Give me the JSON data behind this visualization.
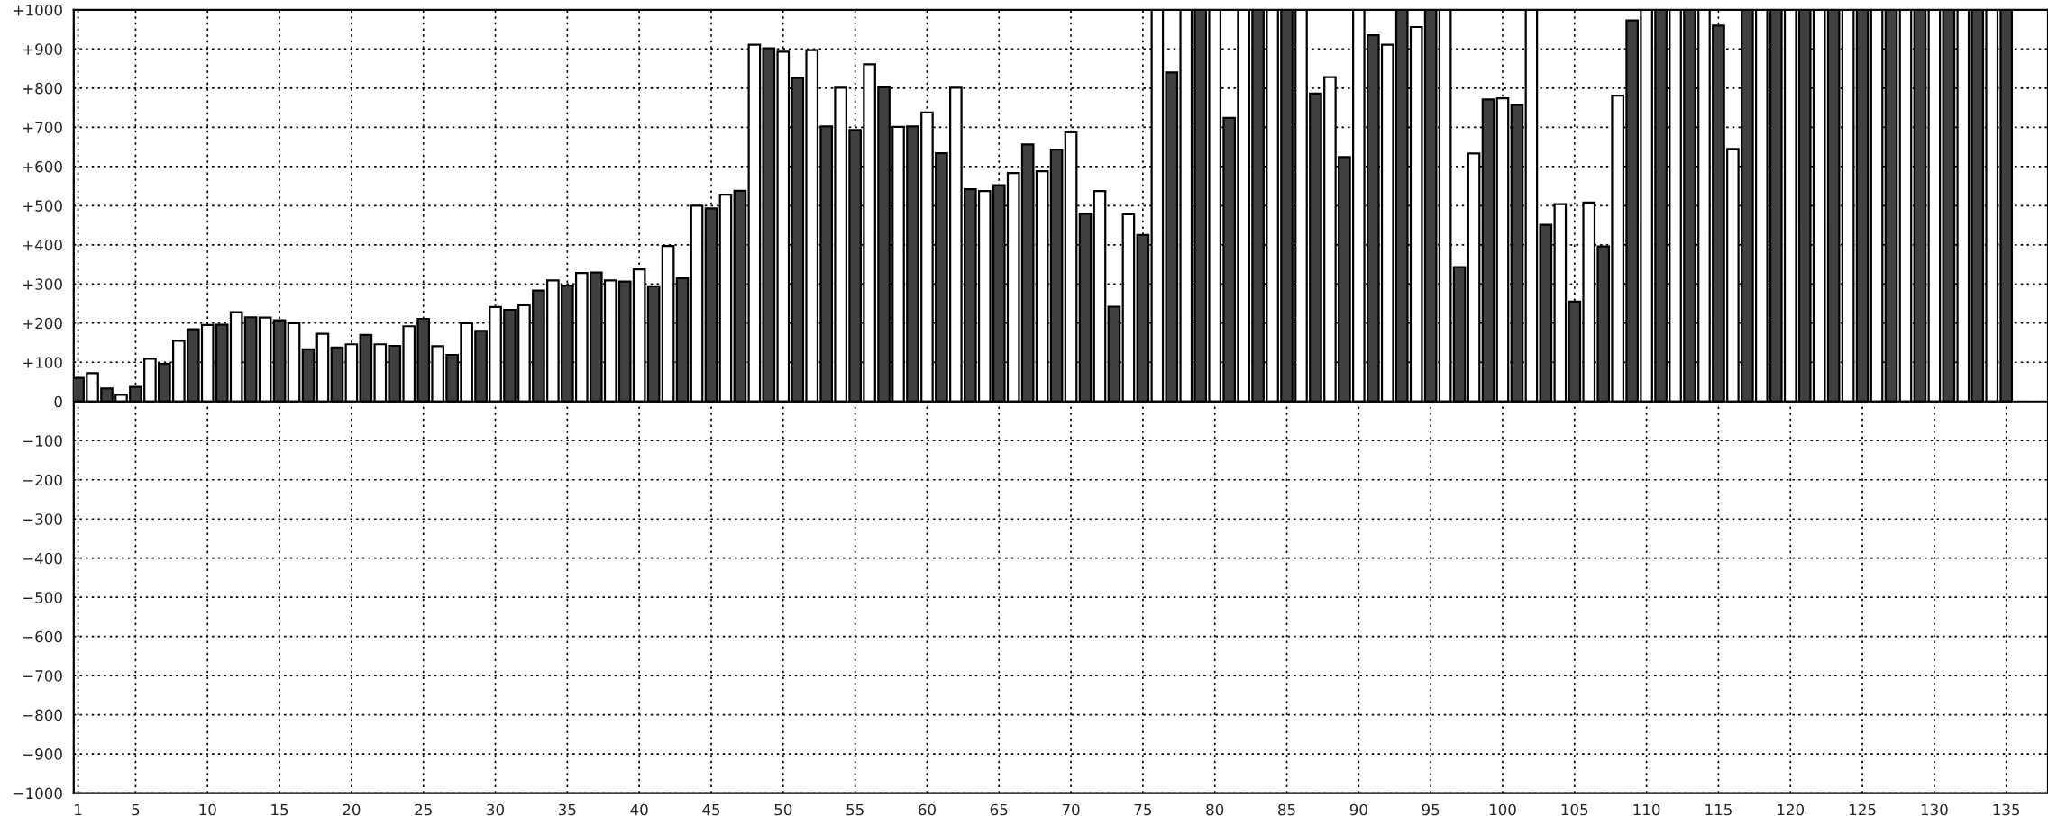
{
  "chart_data": {
    "type": "bar",
    "x": [
      1,
      2,
      3,
      4,
      5,
      6,
      7,
      8,
      9,
      10,
      11,
      12,
      13,
      14,
      15,
      16,
      17,
      18,
      19,
      20,
      21,
      22,
      23,
      24,
      25,
      26,
      27,
      28,
      29,
      30,
      31,
      32,
      33,
      34,
      35,
      36,
      37,
      38,
      39,
      40,
      41,
      42,
      43,
      44,
      45,
      46,
      47,
      48,
      49,
      50,
      51,
      52,
      53,
      54,
      55,
      56,
      57,
      58,
      59,
      60,
      61,
      62,
      63,
      64,
      65,
      66,
      67,
      68,
      69,
      70,
      71,
      72,
      73,
      74,
      75,
      76,
      77,
      78,
      79,
      80,
      81,
      82,
      83,
      84,
      85,
      86,
      87,
      88,
      89,
      90,
      91,
      92,
      93,
      94,
      95,
      96,
      97,
      98,
      99,
      100,
      101,
      102,
      103,
      104,
      105,
      106,
      107,
      108,
      109,
      110,
      111,
      112,
      113,
      114,
      115,
      116,
      117,
      118,
      119,
      120,
      121,
      122,
      123,
      124,
      125,
      126,
      127,
      128,
      129,
      130,
      131,
      132,
      133,
      134,
      135
    ],
    "values": [
      60,
      72,
      33,
      17,
      37,
      109,
      96,
      155,
      184,
      195,
      196,
      228,
      215,
      214,
      207,
      200,
      133,
      173,
      138,
      146,
      170,
      146,
      142,
      192,
      211,
      141,
      119,
      200,
      180,
      241,
      234,
      246,
      283,
      309,
      296,
      328,
      329,
      309,
      306,
      337,
      294,
      397,
      315,
      500,
      493,
      528,
      538,
      911,
      902,
      893,
      826,
      897,
      702,
      801,
      693,
      861,
      802,
      701,
      702,
      738,
      634,
      801,
      542,
      537,
      552,
      583,
      656,
      588,
      643,
      687,
      479,
      537,
      242,
      478,
      425,
      1000,
      840,
      1000,
      1000,
      1000,
      724,
      1000,
      1000,
      1000,
      1000,
      1000,
      786,
      828,
      624,
      1000,
      935,
      911,
      1000,
      956,
      1000,
      1000,
      343,
      633,
      771,
      774,
      757,
      1000,
      451,
      504,
      255,
      508,
      396,
      781,
      973,
      1000,
      1000,
      1000,
      1000,
      1000,
      960,
      645,
      1000,
      1000,
      1000,
      1000,
      1000,
      1000,
      1000,
      1000,
      1000,
      1000,
      1000,
      1000,
      1000,
      1000,
      1000,
      1000,
      1000,
      1000,
      1000
    ],
    "colors": [
      "#404040",
      "#ffffff",
      "#404040",
      "#ffffff",
      "#404040",
      "#ffffff",
      "#404040",
      "#ffffff",
      "#404040",
      "#ffffff",
      "#404040",
      "#ffffff",
      "#404040",
      "#ffffff",
      "#404040",
      "#ffffff",
      "#404040",
      "#ffffff",
      "#404040",
      "#ffffff",
      "#404040",
      "#ffffff",
      "#404040",
      "#ffffff",
      "#404040",
      "#ffffff",
      "#404040",
      "#ffffff",
      "#404040",
      "#ffffff",
      "#404040",
      "#ffffff",
      "#404040",
      "#ffffff",
      "#404040",
      "#ffffff",
      "#404040",
      "#ffffff",
      "#404040",
      "#ffffff",
      "#404040",
      "#ffffff",
      "#404040",
      "#ffffff",
      "#404040",
      "#ffffff",
      "#404040",
      "#ffffff",
      "#404040",
      "#ffffff",
      "#404040",
      "#ffffff",
      "#404040",
      "#ffffff",
      "#404040",
      "#ffffff",
      "#404040",
      "#ffffff",
      "#404040",
      "#ffffff",
      "#404040",
      "#ffffff",
      "#404040",
      "#ffffff",
      "#404040",
      "#ffffff",
      "#404040",
      "#ffffff",
      "#404040",
      "#ffffff",
      "#404040",
      "#ffffff",
      "#404040",
      "#ffffff",
      "#404040",
      "#ffffff",
      "#404040",
      "#ffffff",
      "#404040",
      "#ffffff",
      "#404040",
      "#ffffff",
      "#404040",
      "#ffffff",
      "#404040",
      "#ffffff",
      "#404040",
      "#ffffff",
      "#404040",
      "#ffffff",
      "#404040",
      "#ffffff",
      "#404040",
      "#ffffff",
      "#404040",
      "#ffffff",
      "#404040",
      "#ffffff",
      "#404040",
      "#ffffff",
      "#404040",
      "#ffffff",
      "#404040",
      "#ffffff",
      "#404040",
      "#ffffff",
      "#404040",
      "#ffffff",
      "#404040",
      "#ffffff",
      "#404040",
      "#ffffff",
      "#404040",
      "#ffffff",
      "#404040",
      "#ffffff",
      "#404040",
      "#ffffff",
      "#404040",
      "#ffffff",
      "#404040",
      "#ffffff",
      "#404040",
      "#ffffff",
      "#404040",
      "#ffffff",
      "#404040",
      "#ffffff",
      "#404040",
      "#ffffff",
      "#404040",
      "#ffffff",
      "#404040",
      "#ffffff",
      "#404040"
    ],
    "xlim": [
      0.7,
      137.9
    ],
    "xticks": [
      1,
      5,
      10,
      15,
      20,
      25,
      30,
      35,
      40,
      45,
      50,
      55,
      60,
      65,
      70,
      75,
      80,
      85,
      90,
      95,
      100,
      105,
      110,
      115,
      120,
      125,
      130,
      135
    ],
    "ylim": [
      -1000,
      1000
    ],
    "yticks": [
      {
        "value": -1000,
        "label": "−1000"
      },
      {
        "value": -900,
        "label": "−900"
      },
      {
        "value": -800,
        "label": "−800"
      },
      {
        "value": -700,
        "label": "−700"
      },
      {
        "value": -600,
        "label": "−600"
      },
      {
        "value": -500,
        "label": "−500"
      },
      {
        "value": -400,
        "label": "−400"
      },
      {
        "value": -300,
        "label": "−300"
      },
      {
        "value": -200,
        "label": "−200"
      },
      {
        "value": -100,
        "label": "−100"
      },
      0,
      {
        "value": 100,
        "label": "+100"
      },
      {
        "value": 200,
        "label": "+200"
      },
      {
        "value": 300,
        "label": "+300"
      },
      {
        "value": 400,
        "label": "+400"
      },
      {
        "value": 500,
        "label": "+500"
      },
      {
        "value": 600,
        "label": "+600"
      },
      {
        "value": 700,
        "label": "+700"
      },
      {
        "value": 800,
        "label": "+800"
      },
      {
        "value": 900,
        "label": "+900"
      },
      {
        "value": 1000,
        "label": "+1000"
      }
    ],
    "grid": true
  }
}
